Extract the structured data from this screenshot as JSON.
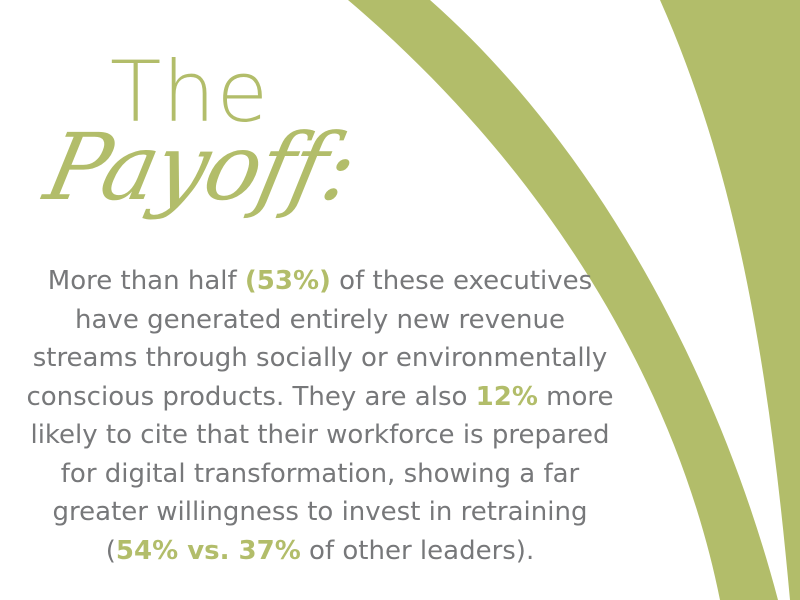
{
  "title": {
    "line1": "The",
    "line2": "Payoff:"
  },
  "body": {
    "s1": "More than half ",
    "h1": "(53%)",
    "s2": " of these executives have generated entirely new revenue streams through socially or environmentally conscious products. They are also ",
    "h2": "12%",
    "s3": " more likely to cite that their workforce is prepared for digital transformation, showing a far greater willingness to invest in retraining (",
    "h3": "54% vs. 37%",
    "s4": " of other leaders)."
  },
  "colors": {
    "accent": "#b2bd6a",
    "text": "#77787a",
    "background": "#ffffff"
  }
}
